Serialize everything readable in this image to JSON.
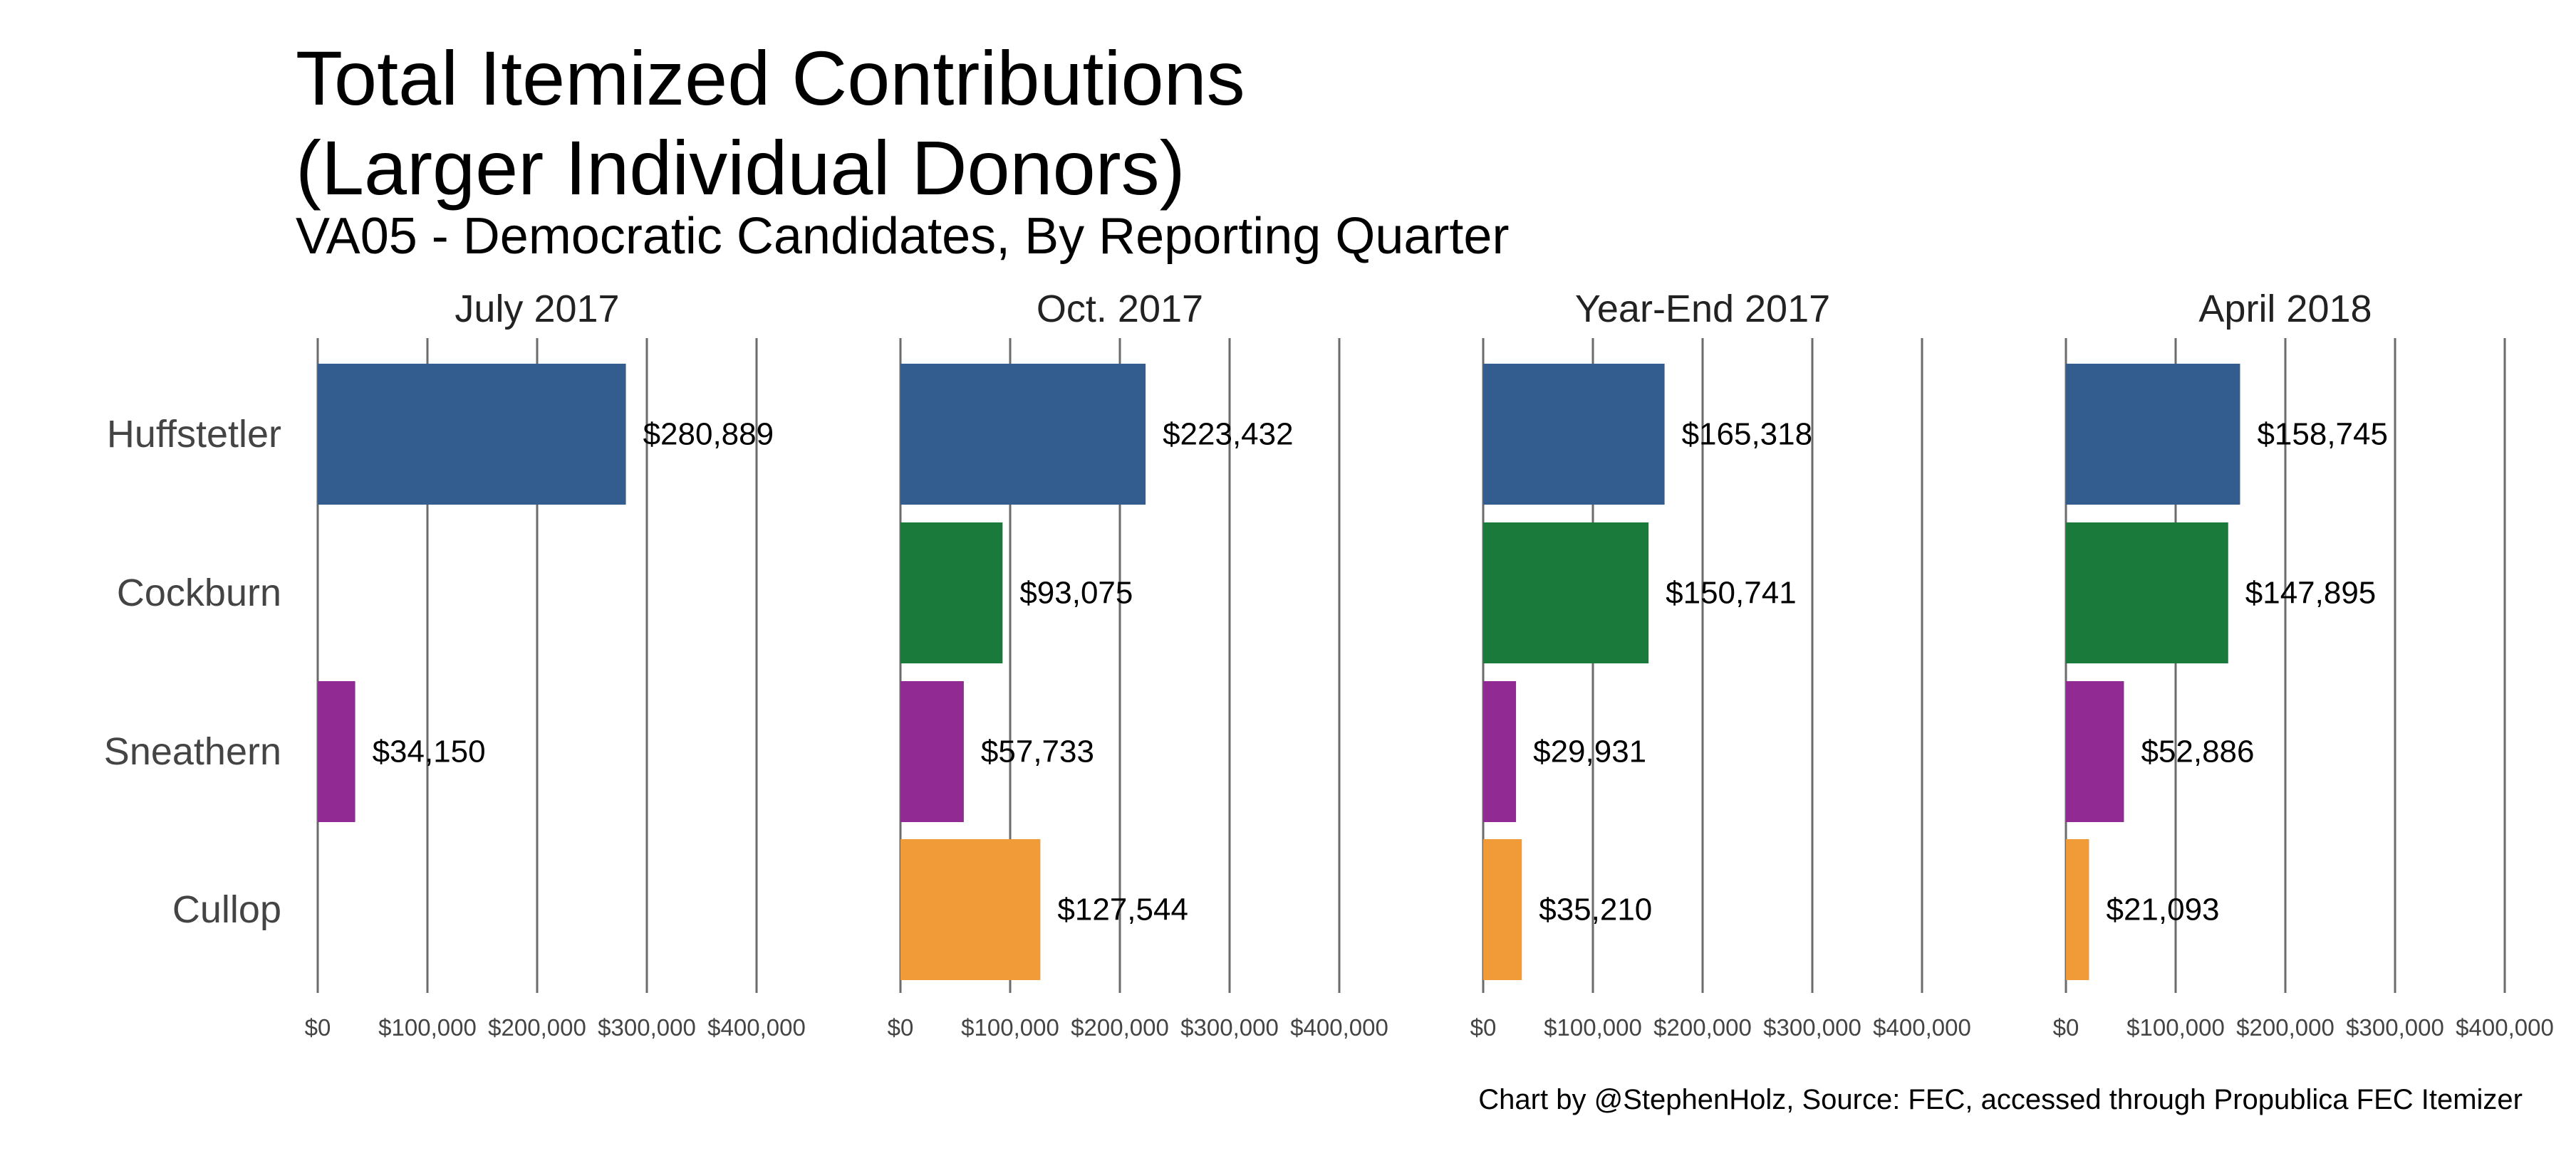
{
  "title_line1": "Total Itemized Contributions",
  "title_line2": "(Larger Individual Donors)",
  "subtitle": "VA05 - Democratic Candidates, By Reporting Quarter",
  "caption": "Chart by @StephenHolz, Source: FEC, accessed through Propublica FEC Itemizer",
  "chart_data": {
    "type": "bar",
    "orientation": "horizontal",
    "facets": [
      "July 2017",
      "Oct. 2017",
      "Year-End 2017",
      "April 2018"
    ],
    "categories": [
      "Huffstetler",
      "Cockburn",
      "Sneathern",
      "Cullop"
    ],
    "colors": {
      "Huffstetler": "#335C8F",
      "Cockburn": "#1A7A3C",
      "Sneathern": "#922A93",
      "Cullop": "#F09B37"
    },
    "xlim": [
      0,
      400000
    ],
    "x_ticks": [
      0,
      100000,
      200000,
      300000,
      400000
    ],
    "x_tick_labels": [
      "$0",
      "$100,000",
      "$200,000",
      "$300,000",
      "$400,000"
    ],
    "grid": "vertical major lines",
    "values": [
      [
        280889,
        null,
        34150,
        null
      ],
      [
        223432,
        93075,
        57733,
        127544
      ],
      [
        165318,
        150741,
        29931,
        35210
      ],
      [
        158745,
        147895,
        52886,
        21093
      ]
    ],
    "labels": [
      [
        "$280,889",
        null,
        "$34,150",
        null
      ],
      [
        "$223,432",
        "$93,075",
        "$57,733",
        "$127,544"
      ],
      [
        "$165,318",
        "$150,741",
        "$29,931",
        "$35,210"
      ],
      [
        "$158,745",
        "$147,895",
        "$52,886",
        "$21,093"
      ]
    ]
  }
}
